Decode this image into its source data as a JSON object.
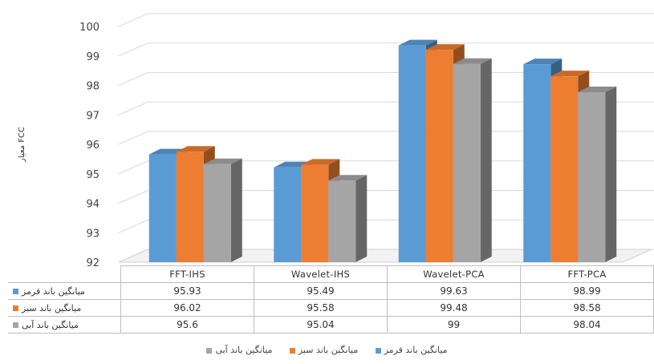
{
  "chart_data": {
    "type": "bar",
    "style": "3d-clustered-column",
    "categories": [
      "FFT-IHS",
      "Wavelet-IHS",
      "Wavelet-PCA",
      "FFT-PCA"
    ],
    "series": [
      {
        "name": "میانگین باند قرمز",
        "values": [
          95.93,
          95.49,
          99.63,
          98.99
        ],
        "color": "#5b9bd5",
        "label": "95.93"
      },
      {
        "name": "میانگین باند سبز",
        "values": [
          96.02,
          95.58,
          99.48,
          98.58
        ],
        "color": "#ed7d31"
      },
      {
        "name": "میانگین باند آبی",
        "values": [
          95.6,
          95.04,
          99,
          98.04
        ],
        "color": "#a5a5a5"
      }
    ],
    "table_values": [
      [
        "95.93",
        "95.49",
        "99.63",
        "98.99"
      ],
      [
        "96.02",
        "95.58",
        "99.48",
        "98.58"
      ],
      [
        "95.6",
        "95.04",
        "99",
        "98.04"
      ]
    ],
    "ylabel": "معیار FCC",
    "ylim": [
      92,
      100
    ],
    "yticks": [
      "92",
      "93",
      "94",
      "95",
      "96",
      "97",
      "98",
      "99",
      "100"
    ],
    "grid": true,
    "legend_position": "bottom"
  }
}
